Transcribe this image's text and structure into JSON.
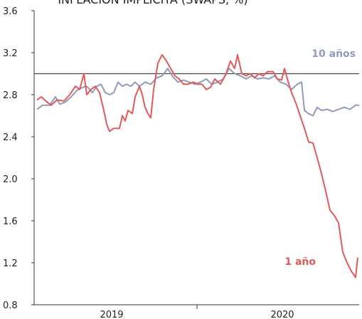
{
  "chart_data": {
    "type": "line",
    "title": "INFLACIÓN IMPLÍCITA (SWAPS, %)",
    "xlim": [
      0.55,
      23.4
    ],
    "xticks": [
      {
        "value": 6,
        "label": "2019"
      },
      {
        "value": 18,
        "label": "2020"
      }
    ],
    "xtick_marks": [
      12
    ],
    "ylim": [
      0.8,
      3.6
    ],
    "yticks": [
      {
        "value": 0.8,
        "label": "0.8"
      },
      {
        "value": 1.2,
        "label": "1.2"
      },
      {
        "value": 1.6,
        "label": "1.6"
      },
      {
        "value": 2,
        "label": "2.0"
      },
      {
        "value": 2.4,
        "label": "2.4"
      },
      {
        "value": 2.8,
        "label": "2.8"
      },
      {
        "value": 3.2,
        "label": "3.2"
      },
      {
        "value": 3.6,
        "label": "3.6"
      }
    ],
    "hline": 3,
    "grid": false,
    "series": [
      {
        "name": "10 años",
        "color": "#8f9bb9",
        "x": [
          0.75,
          1.15,
          1.65,
          2.05,
          2.35,
          2.75,
          3.15,
          3.55,
          3.95,
          4.25,
          4.65,
          4.95,
          5.25,
          5.55,
          5.85,
          6.15,
          6.45,
          6.75,
          7.05,
          7.35,
          7.65,
          7.95,
          8.35,
          8.75,
          9.15,
          9.55,
          9.95,
          10.25,
          10.65,
          11.05,
          11.45,
          11.85,
          12.25,
          12.65,
          13.05,
          13.45,
          13.85,
          14.25,
          14.65,
          15.05,
          15.45,
          15.85,
          16.25,
          16.65,
          17.05,
          17.45,
          17.85,
          18.25,
          18.65,
          19.05,
          19.35,
          19.55,
          19.85,
          20.15,
          20.45,
          20.75,
          21.15,
          21.55,
          21.95,
          22.35,
          22.75,
          23.15,
          23.4
        ],
        "values": [
          2.66,
          2.7,
          2.7,
          2.78,
          2.71,
          2.73,
          2.78,
          2.84,
          2.87,
          2.88,
          2.82,
          2.88,
          2.9,
          2.82,
          2.8,
          2.82,
          2.92,
          2.88,
          2.9,
          2.88,
          2.92,
          2.88,
          2.92,
          2.9,
          2.96,
          2.98,
          3.05,
          2.98,
          2.92,
          2.94,
          2.92,
          2.9,
          2.92,
          2.95,
          2.9,
          2.92,
          2.95,
          3.05,
          3.0,
          2.98,
          2.95,
          2.98,
          2.95,
          2.96,
          2.95,
          2.98,
          2.92,
          2.9,
          2.85,
          2.9,
          2.92,
          2.65,
          2.62,
          2.6,
          2.68,
          2.65,
          2.66,
          2.64,
          2.66,
          2.68,
          2.66,
          2.7,
          2.7
        ]
      },
      {
        "name": "1 año",
        "color": "#e05a5a",
        "x": [
          0.75,
          1.05,
          1.45,
          1.75,
          2.15,
          2.65,
          3.05,
          3.45,
          3.75,
          4.05,
          4.25,
          4.55,
          4.85,
          5.15,
          5.45,
          5.65,
          5.85,
          6.15,
          6.55,
          6.75,
          6.95,
          7.15,
          7.45,
          7.65,
          7.95,
          8.15,
          8.35,
          8.55,
          8.75,
          8.95,
          9.25,
          9.55,
          9.85,
          10.15,
          10.45,
          10.75,
          11.05,
          11.35,
          11.75,
          12.05,
          12.35,
          12.65,
          12.95,
          13.25,
          13.65,
          14.05,
          14.35,
          14.65,
          14.85,
          15.15,
          15.45,
          15.75,
          16.05,
          16.35,
          16.65,
          16.95,
          17.35,
          17.65,
          17.95,
          18.15,
          18.35,
          18.65,
          18.95,
          19.25,
          19.55,
          19.85,
          20.15,
          20.45,
          20.75,
          21.05,
          21.35,
          21.65,
          21.95,
          22.25,
          22.55,
          22.85,
          23.15,
          23.3
        ],
        "values": [
          2.75,
          2.78,
          2.73,
          2.7,
          2.75,
          2.74,
          2.8,
          2.88,
          2.85,
          3.0,
          2.8,
          2.85,
          2.88,
          2.82,
          2.65,
          2.52,
          2.45,
          2.48,
          2.48,
          2.6,
          2.55,
          2.65,
          2.62,
          2.78,
          2.88,
          2.8,
          2.68,
          2.62,
          2.58,
          2.85,
          3.1,
          3.18,
          3.12,
          3.05,
          2.98,
          2.95,
          2.9,
          2.9,
          2.92,
          2.9,
          2.9,
          2.85,
          2.87,
          2.95,
          2.9,
          3.0,
          3.12,
          3.05,
          3.18,
          3.0,
          2.98,
          3.0,
          2.96,
          3.0,
          2.98,
          3.02,
          3.02,
          2.95,
          2.94,
          3.05,
          2.95,
          2.82,
          2.72,
          2.6,
          2.48,
          2.35,
          2.34,
          2.2,
          2.05,
          1.88,
          1.7,
          1.65,
          1.58,
          1.3,
          1.2,
          1.12,
          1.06,
          1.25
        ]
      }
    ]
  }
}
